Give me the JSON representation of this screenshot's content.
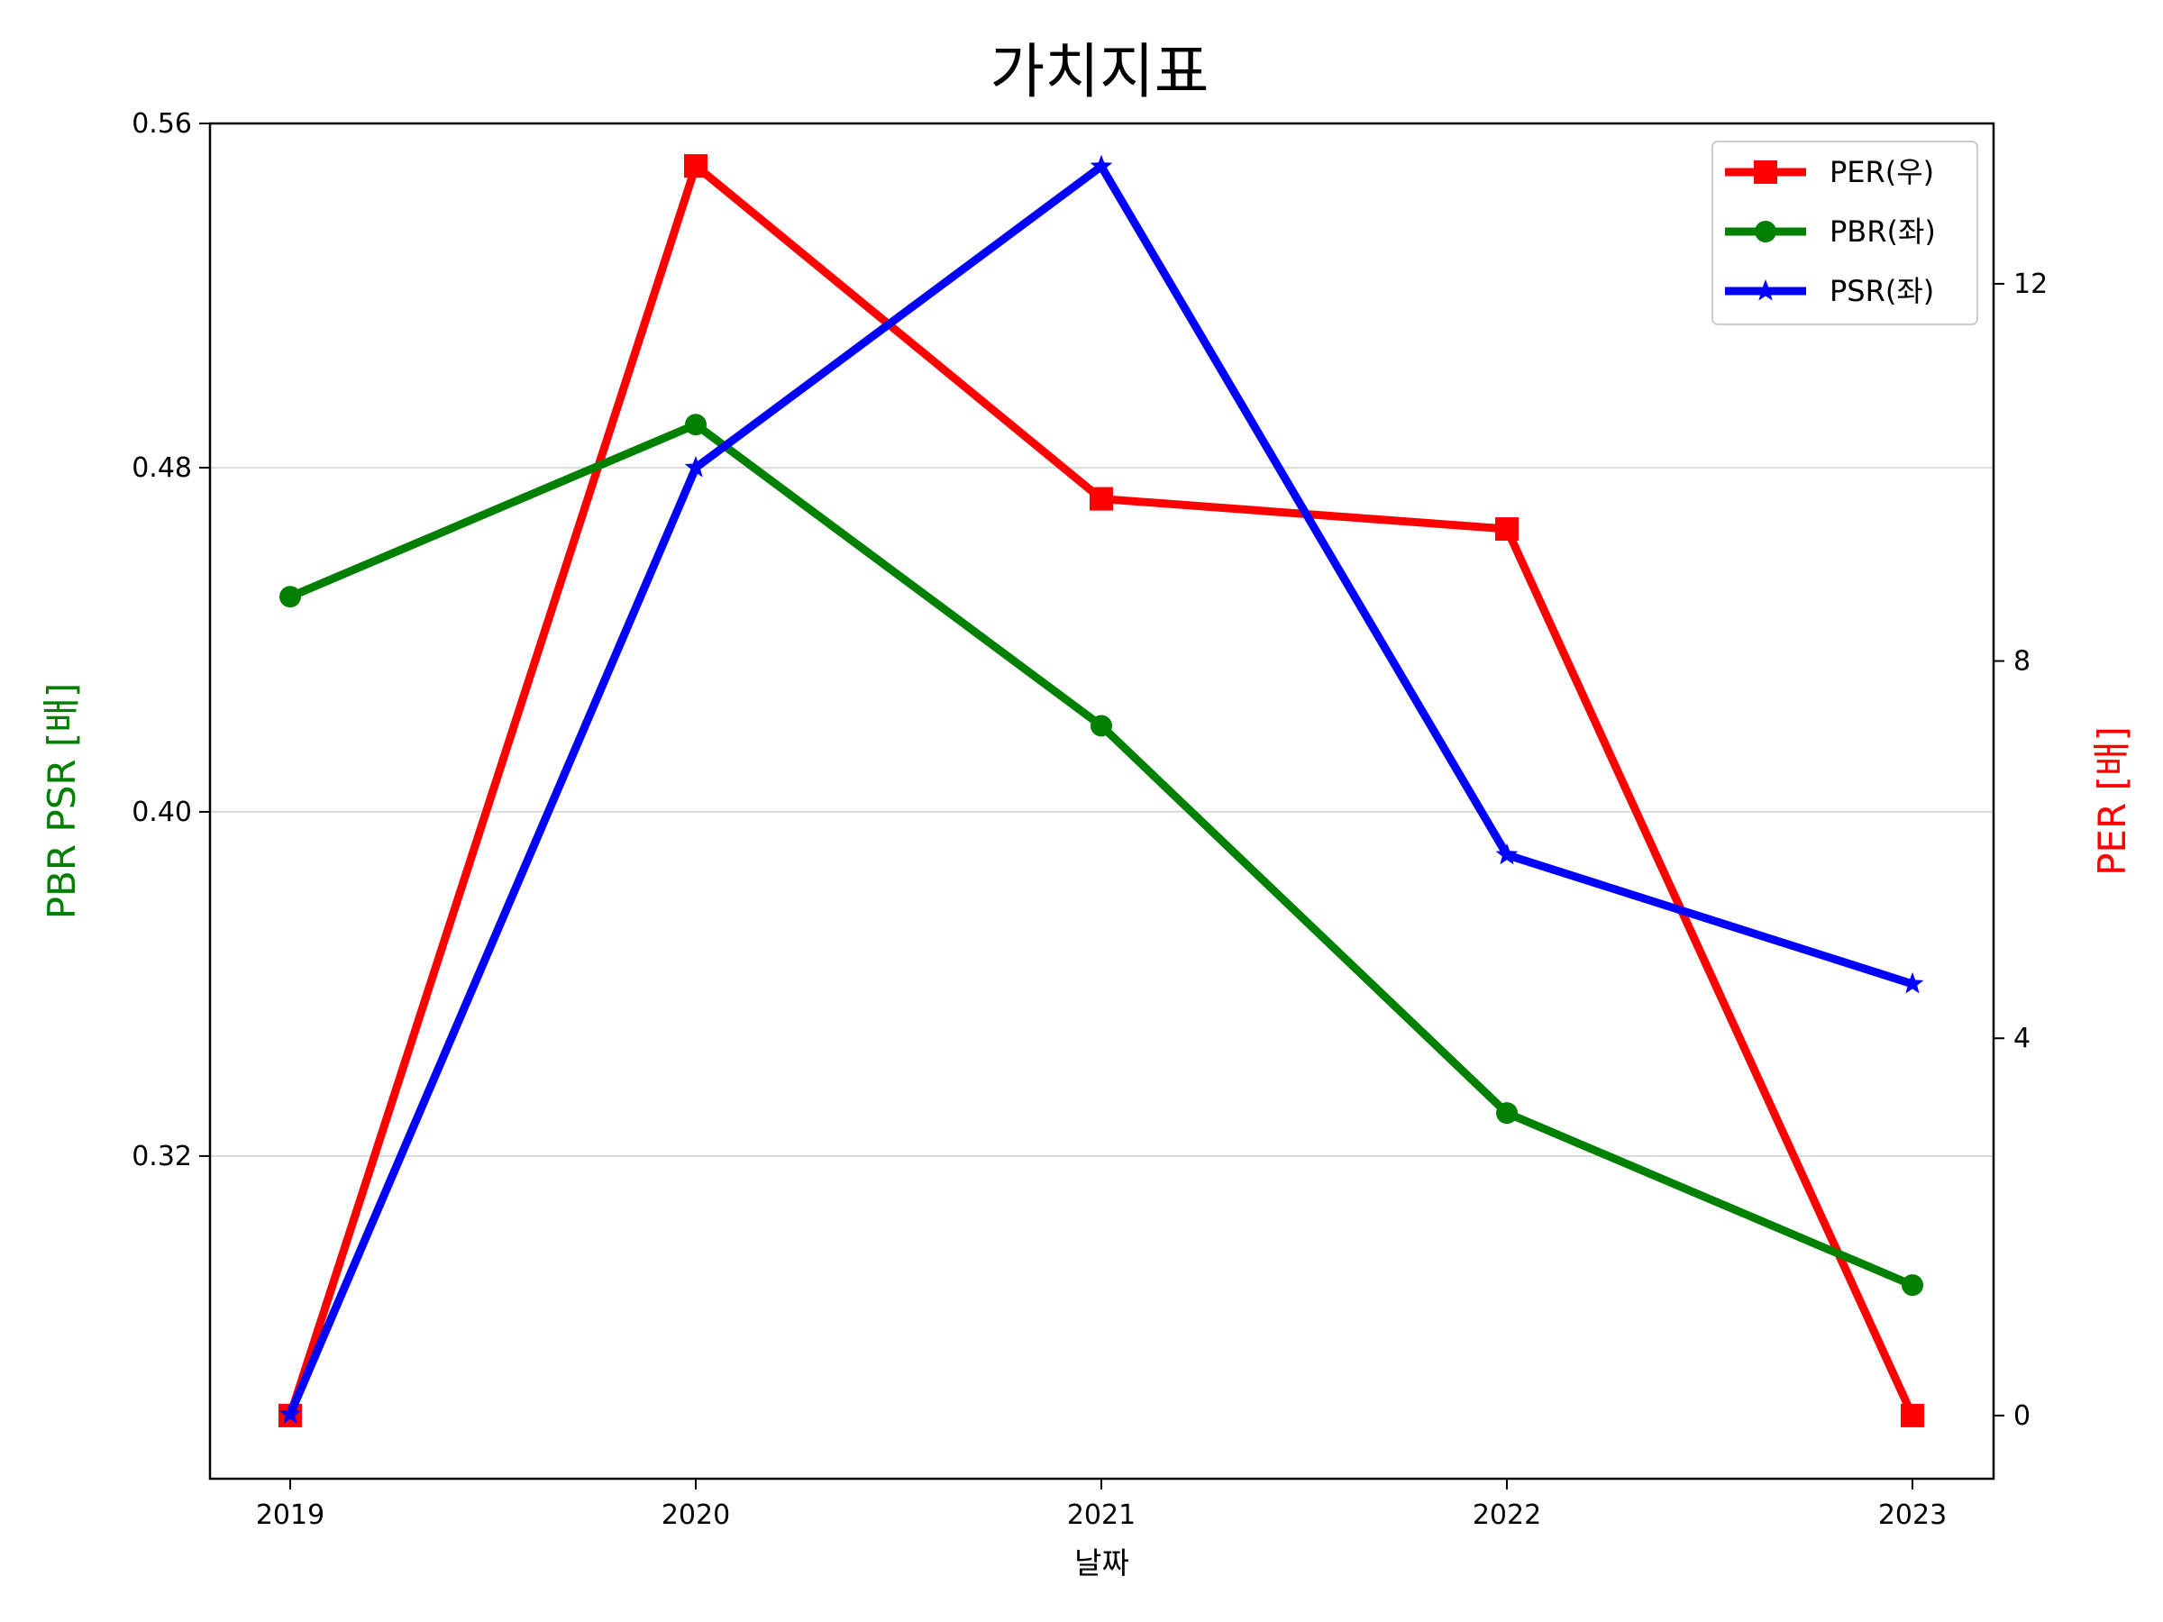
{
  "chart_data": {
    "type": "line",
    "title": "가치지표",
    "xlabel": "날짜",
    "ylabel_left": "PBR PSR [배]",
    "ylabel_right": "PER [배]",
    "categories": [
      "2019",
      "2020",
      "2021",
      "2022",
      "2023"
    ],
    "ylim_left": [
      0.245,
      0.56
    ],
    "yticks_left": [
      "0.32",
      "0.40",
      "0.48",
      "0.56"
    ],
    "ylim_right": [
      -0.67,
      13.7
    ],
    "yticks_right": [
      "0",
      "4",
      "8",
      "12"
    ],
    "grid": "horizontal (left axis ticks)",
    "legend_position": "top-right",
    "series": [
      {
        "name": "PER(우)",
        "axis": "right",
        "color": "#ff0000",
        "marker": "square",
        "values": [
          0,
          13.25,
          9.72,
          9.4,
          0
        ]
      },
      {
        "name": "PBR(좌)",
        "axis": "left",
        "color": "#008000",
        "marker": "circle",
        "values": [
          0.45,
          0.49,
          0.42,
          0.33,
          0.29
        ]
      },
      {
        "name": "PSR(좌)",
        "axis": "left",
        "color": "#0000ff",
        "marker": "star",
        "values": [
          0.26,
          0.48,
          0.55,
          0.39,
          0.36
        ]
      }
    ],
    "label_colors": {
      "left": "#008000",
      "right": "#ff0000"
    }
  }
}
